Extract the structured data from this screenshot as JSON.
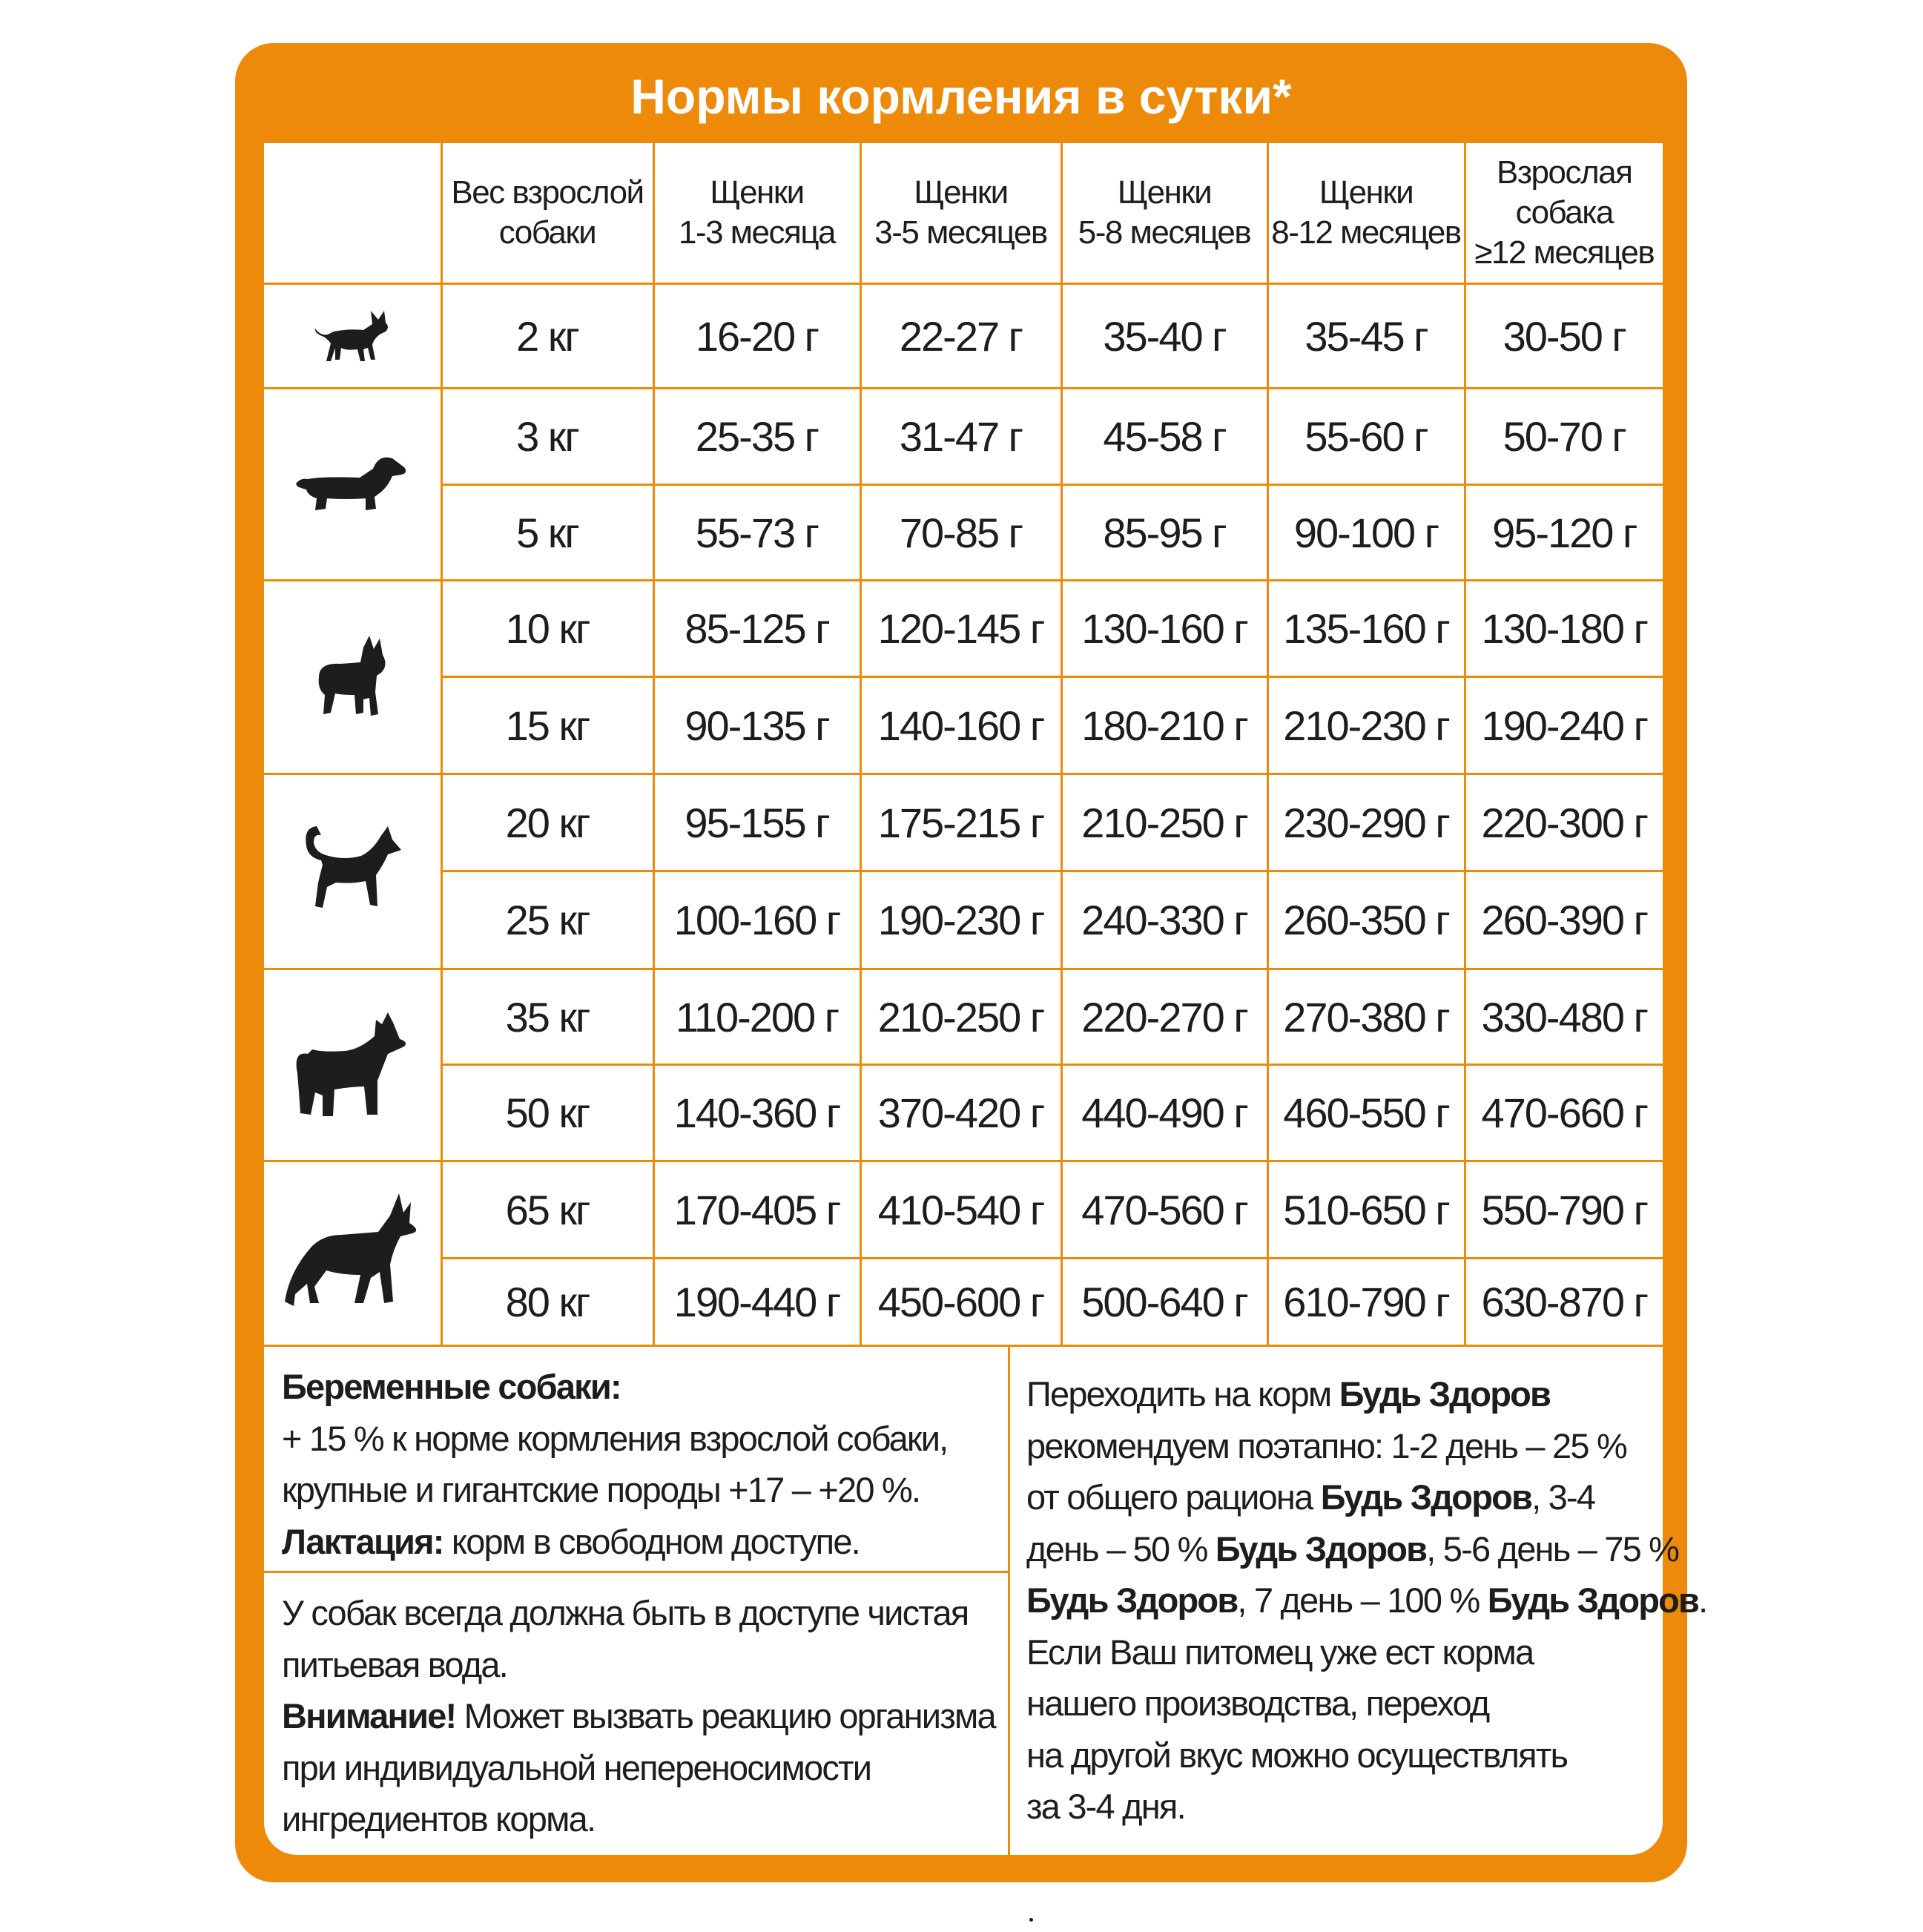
{
  "title": "Нормы кормления в сутки*",
  "colors": {
    "accent": "#ee8a09",
    "text": "#1d1d1b"
  },
  "table": {
    "headers": [
      "",
      "Вес взрослой\nсобаки",
      "Щенки\n1-3 месяца",
      "Щенки\n3-5 месяцев",
      "Щенки\n5-8 месяцев",
      "Щенки\n8-12 месяцев",
      "Взрослая\nсобака\n≥12 месяцев"
    ],
    "groups": [
      {
        "icon": "chihuahua-icon",
        "rows": [
          [
            "2 кг",
            "16-20 г",
            "22-27 г",
            "35-40 г",
            "35-45 г",
            "30-50 г"
          ]
        ]
      },
      {
        "icon": "dachshund-icon",
        "rows": [
          [
            "3 кг",
            "25-35 г",
            "31-47 г",
            "45-58 г",
            "55-60 г",
            "50-70 г"
          ],
          [
            "5 кг",
            "55-73 г",
            "70-85 г",
            "85-95 г",
            "90-100 г",
            "95-120 г"
          ]
        ]
      },
      {
        "icon": "french-bulldog-icon",
        "rows": [
          [
            "10 кг",
            "85-125 г",
            "120-145 г",
            "130-160 г",
            "135-160 г",
            "130-180 г"
          ],
          [
            "15 кг",
            "90-135 г",
            "140-160 г",
            "180-210 г",
            "210-230 г",
            "190-240 г"
          ]
        ]
      },
      {
        "icon": "medium-dog-icon",
        "rows": [
          [
            "20 кг",
            "95-155 г",
            "175-215 г",
            "210-250 г",
            "230-290 г",
            "220-300 г"
          ],
          [
            "25 кг",
            "100-160 г",
            "190-230 г",
            "240-330 г",
            "260-350 г",
            "260-390 г"
          ]
        ]
      },
      {
        "icon": "husky-icon",
        "rows": [
          [
            "35 кг",
            "110-200 г",
            "210-250 г",
            "220-270 г",
            "270-380 г",
            "330-480 г"
          ],
          [
            "50 кг",
            "140-360 г",
            "370-420 г",
            "440-490 г",
            "460-550 г",
            "470-660 г"
          ]
        ]
      },
      {
        "icon": "shepherd-icon",
        "rows": [
          [
            "65 кг",
            "170-405 г",
            "410-540 г",
            "470-560 г",
            "510-650 г",
            "550-790 г"
          ],
          [
            "80 кг",
            "190-440 г",
            "450-600 г",
            "500-640 г",
            "610-790 г",
            "630-870 г"
          ]
        ]
      }
    ]
  },
  "notes": {
    "pregnant": [
      [
        {
          "t": "Беременные собаки:",
          "b": true
        }
      ],
      [
        {
          "t": "+ 15 % к норме кормления взрослой собаки,"
        }
      ],
      [
        {
          "t": "крупные и гигантские породы +17 – +20 %."
        }
      ],
      [
        {
          "t": "Лактация:",
          "b": true
        },
        {
          "t": " корм в свободном доступе."
        }
      ]
    ],
    "water": [
      [
        {
          "t": "У собак всегда должна быть в доступе чистая"
        }
      ],
      [
        {
          "t": "питьевая вода."
        }
      ],
      [
        {
          "t": "Внимание!",
          "b": true
        },
        {
          "t": " Может вызвать реакцию организма"
        }
      ],
      [
        {
          "t": "при индивидуальной непереносимости"
        }
      ],
      [
        {
          "t": "ингредиентов корма."
        }
      ]
    ],
    "transition": [
      [
        {
          "t": "Переходить на корм "
        },
        {
          "t": "Будь Здоров",
          "b": true
        }
      ],
      [
        {
          "t": "рекомендуем поэтапно: 1-2 день – 25 %"
        }
      ],
      [
        {
          "t": "от общего рациона "
        },
        {
          "t": "Будь Здоров",
          "b": true
        },
        {
          "t": ", 3-4"
        }
      ],
      [
        {
          "t": "день – 50 % "
        },
        {
          "t": "Будь Здоров",
          "b": true
        },
        {
          "t": ", 5-6 день – 75 %"
        }
      ],
      [
        {
          "t": "Будь Здоров",
          "b": true
        },
        {
          "t": ", 7 день – 100 % "
        },
        {
          "t": "Будь Здоров",
          "b": true
        },
        {
          "t": "."
        }
      ],
      [
        {
          "t": "Если Ваш питомец уже ест корма"
        }
      ],
      [
        {
          "t": "нашего производства, переход"
        }
      ],
      [
        {
          "t": "на другой вкус можно осуществлять"
        }
      ],
      [
        {
          "t": "за 3-4 дня."
        }
      ]
    ]
  }
}
